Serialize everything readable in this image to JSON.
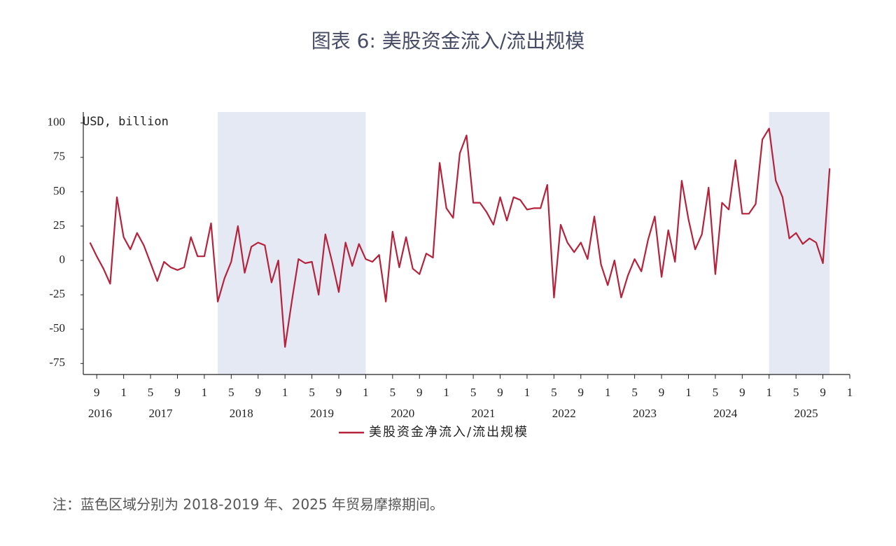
{
  "chart_data": {
    "type": "line",
    "title": "图表 6:     美股资金流入/流出规模",
    "y_axis_label": "USD, billion",
    "note": "注：蓝色区域分别为 2018-2019 年、2025 年贸易摩擦期间。",
    "x": [
      "2016-08",
      "2016-09",
      "2016-10",
      "2016-11",
      "2016-12",
      "2017-01",
      "2017-02",
      "2017-03",
      "2017-04",
      "2017-05",
      "2017-06",
      "2017-07",
      "2017-08",
      "2017-09",
      "2017-10",
      "2017-11",
      "2017-12",
      "2018-01",
      "2018-02",
      "2018-03",
      "2018-04",
      "2018-05",
      "2018-06",
      "2018-07",
      "2018-08",
      "2018-09",
      "2018-10",
      "2018-11",
      "2018-12",
      "2019-01",
      "2019-02",
      "2019-03",
      "2019-04",
      "2019-05",
      "2019-06",
      "2019-07",
      "2019-08",
      "2019-09",
      "2019-10",
      "2019-11",
      "2019-12",
      "2020-01",
      "2020-02",
      "2020-03",
      "2020-04",
      "2020-05",
      "2020-06",
      "2020-07",
      "2020-08",
      "2020-09",
      "2020-10",
      "2020-11",
      "2020-12",
      "2021-01",
      "2021-02",
      "2021-03",
      "2021-04",
      "2021-05",
      "2021-06",
      "2021-07",
      "2021-08",
      "2021-09",
      "2021-10",
      "2021-11",
      "2021-12",
      "2022-01",
      "2022-02",
      "2022-03",
      "2022-04",
      "2022-05",
      "2022-06",
      "2022-07",
      "2022-08",
      "2022-09",
      "2022-10",
      "2022-11",
      "2022-12",
      "2023-01",
      "2023-02",
      "2023-03",
      "2023-04",
      "2023-05",
      "2023-06",
      "2023-07",
      "2023-08",
      "2023-09",
      "2023-10",
      "2023-11",
      "2023-12",
      "2024-01",
      "2024-02",
      "2024-03",
      "2024-04",
      "2024-05",
      "2024-06",
      "2024-07",
      "2024-08",
      "2024-09",
      "2024-10",
      "2024-11",
      "2024-12",
      "2025-01",
      "2025-02",
      "2025-03",
      "2025-04",
      "2025-05",
      "2025-06",
      "2025-07",
      "2025-08",
      "2025-09",
      "2025-10"
    ],
    "series": [
      {
        "name": "美股资金净流入/流出规模",
        "color": "#b5223b",
        "values": [
          13,
          3,
          -6,
          -17,
          46,
          17,
          8,
          20,
          11,
          -2,
          -15,
          -1,
          -5,
          -7,
          -5,
          17,
          3,
          3,
          27,
          -30,
          -13,
          -1,
          25,
          -9,
          10,
          13,
          11,
          -16,
          0,
          -63,
          -30,
          1,
          -2,
          -1,
          -25,
          19,
          -1,
          -23,
          13,
          -4,
          12,
          1,
          -1,
          4,
          -30,
          21,
          -5,
          17,
          -6,
          -10,
          5,
          2,
          71,
          38,
          31,
          78,
          91,
          42,
          42,
          35,
          26,
          46,
          29,
          46,
          44,
          37,
          38,
          38,
          55,
          -27,
          26,
          13,
          6,
          13,
          1,
          32,
          -3,
          -18,
          0,
          -27,
          -11,
          1,
          -8,
          15,
          32,
          -12,
          22,
          -1,
          58,
          30,
          8,
          19,
          53,
          -10,
          42,
          37,
          73,
          34,
          34,
          41,
          88,
          96,
          58,
          46,
          16,
          20,
          12,
          16,
          13,
          -2,
          67
        ]
      }
    ],
    "shaded_periods": [
      [
        "2018-03",
        "2020-01"
      ],
      [
        "2025-01",
        "2025-10"
      ]
    ],
    "shade_color": "#e4e9f3",
    "xlim": [
      "2016-07",
      "2026-01"
    ],
    "xticks": [
      {
        "value": "2016-09",
        "label": "9"
      },
      {
        "value": "2017-01",
        "label": "1"
      },
      {
        "value": "2017-05",
        "label": "5"
      },
      {
        "value": "2017-09",
        "label": "9"
      },
      {
        "value": "2018-01",
        "label": "1"
      },
      {
        "value": "2018-05",
        "label": "5"
      },
      {
        "value": "2018-09",
        "label": "9"
      },
      {
        "value": "2019-01",
        "label": "1"
      },
      {
        "value": "2019-05",
        "label": "5"
      },
      {
        "value": "2019-09",
        "label": "9"
      },
      {
        "value": "2020-01",
        "label": "1"
      },
      {
        "value": "2020-05",
        "label": "5"
      },
      {
        "value": "2020-09",
        "label": "9"
      },
      {
        "value": "2021-01",
        "label": "1"
      },
      {
        "value": "2021-05",
        "label": "5"
      },
      {
        "value": "2021-09",
        "label": "9"
      },
      {
        "value": "2022-01",
        "label": "1"
      },
      {
        "value": "2022-05",
        "label": "5"
      },
      {
        "value": "2022-09",
        "label": "9"
      },
      {
        "value": "2023-01",
        "label": "1"
      },
      {
        "value": "2023-05",
        "label": "5"
      },
      {
        "value": "2023-09",
        "label": "9"
      },
      {
        "value": "2024-01",
        "label": "1"
      },
      {
        "value": "2024-05",
        "label": "5"
      },
      {
        "value": "2024-09",
        "label": "9"
      },
      {
        "value": "2025-01",
        "label": "1"
      },
      {
        "value": "2025-05",
        "label": "5"
      },
      {
        "value": "2025-09",
        "label": "9"
      },
      {
        "value": "2026-01",
        "label": "1"
      }
    ],
    "year_labels": [
      "2016",
      "2017",
      "2018",
      "2019",
      "2020",
      "2021",
      "2022",
      "2023",
      "2024",
      "2025"
    ],
    "ylim": [
      -83,
      108
    ],
    "yticks": [
      -75,
      -50,
      -25,
      0,
      25,
      50,
      75,
      100
    ]
  }
}
